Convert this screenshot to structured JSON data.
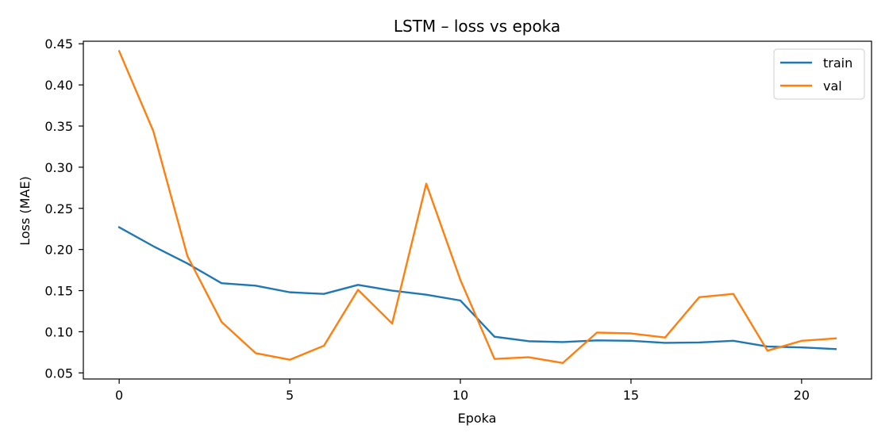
{
  "chart_data": {
    "type": "line",
    "title": "LSTM – loss vs epoka",
    "xlabel": "Epoka",
    "ylabel": "Loss (MAE)",
    "x": [
      0,
      1,
      2,
      3,
      4,
      5,
      6,
      7,
      8,
      9,
      10,
      11,
      12,
      13,
      14,
      15,
      16,
      17,
      18,
      19,
      20,
      21
    ],
    "xlim": [
      -1.05,
      22.05
    ],
    "ylim": [
      0.0426,
      0.4531
    ],
    "xticks": [
      0,
      5,
      10,
      15,
      20
    ],
    "yticks": [
      0.05,
      0.1,
      0.15,
      0.2,
      0.25,
      0.3,
      0.35,
      0.4,
      0.45
    ],
    "grid": false,
    "legend_position": "top-right",
    "series": [
      {
        "name": "train",
        "color": "#1f77b4",
        "values": [
          0.227,
          0.204,
          0.183,
          0.159,
          0.156,
          0.148,
          0.146,
          0.157,
          0.15,
          0.145,
          0.138,
          0.094,
          0.0885,
          0.0875,
          0.0895,
          0.089,
          0.0865,
          0.087,
          0.089,
          0.082,
          0.081,
          0.079
        ]
      },
      {
        "name": "val",
        "color": "#ff7f0e",
        "values": [
          0.441,
          0.344,
          0.192,
          0.112,
          0.074,
          0.066,
          0.083,
          0.151,
          0.11,
          0.28,
          0.163,
          0.067,
          0.069,
          0.062,
          0.099,
          0.098,
          0.093,
          0.142,
          0.146,
          0.077,
          0.089,
          0.092
        ]
      }
    ]
  }
}
